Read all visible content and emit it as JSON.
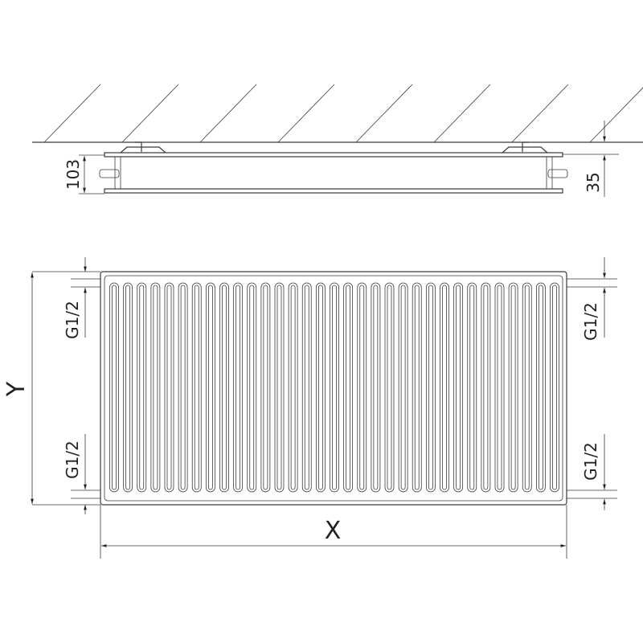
{
  "side_view": {
    "depth_label": "103",
    "wall_gap_label": "35"
  },
  "front_view": {
    "connection_labels": [
      "G1/2",
      "G1/2",
      "G1/2",
      "G1/2"
    ],
    "height_label": "Y",
    "width_label": "X",
    "slot_count": 33
  }
}
